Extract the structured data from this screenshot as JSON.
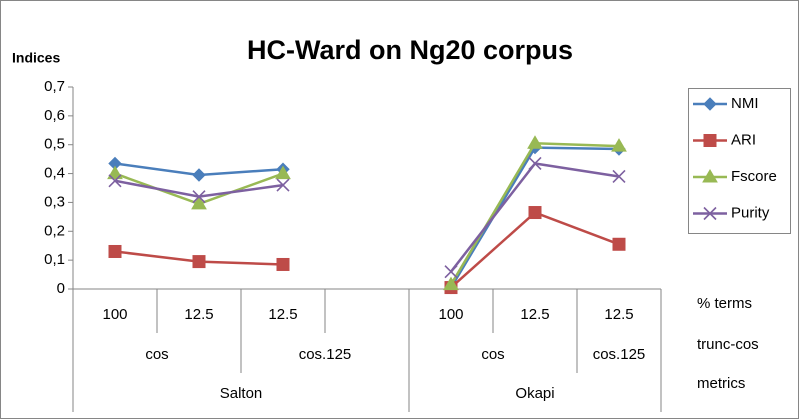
{
  "chart_data": {
    "type": "line",
    "title": "HC-Ward on Ng20 corpus",
    "y_label": "Indices",
    "categories": [
      "100",
      "12.5",
      "12.5",
      null,
      "100",
      "12.5",
      "12.5"
    ],
    "group_levels": [
      {
        "name": "% terms"
      },
      {
        "name": "trunc-cos",
        "groups": [
          {
            "label": "cos",
            "count": 2
          },
          {
            "label": "cos.125",
            "count": 2
          },
          {
            "label": "cos",
            "count": 2
          },
          {
            "label": "cos.125",
            "count": 1
          }
        ]
      },
      {
        "name": "metrics",
        "groups": [
          {
            "label": "Salton",
            "count": 4
          },
          {
            "label": "Okapi",
            "count": 3
          }
        ]
      }
    ],
    "series": [
      {
        "name": "NMI",
        "color": "#4a7ebb",
        "marker": "diamond",
        "values": [
          0.435,
          0.395,
          0.415,
          null,
          0.005,
          0.49,
          0.485
        ]
      },
      {
        "name": "ARI",
        "color": "#be4b48",
        "marker": "square",
        "values": [
          0.13,
          0.095,
          0.085,
          null,
          0.005,
          0.265,
          0.155
        ]
      },
      {
        "name": "Fscore",
        "color": "#98b954",
        "marker": "triangle",
        "values": [
          0.4,
          0.295,
          0.4,
          null,
          0.015,
          0.505,
          0.495
        ]
      },
      {
        "name": "Purity",
        "color": "#7d60a0",
        "marker": "x",
        "values": [
          0.375,
          0.32,
          0.36,
          null,
          0.06,
          0.435,
          0.39
        ]
      }
    ],
    "ylim": [
      0,
      0.7
    ],
    "yticks": [
      0,
      {
        "value": 0.1,
        "label": "0,1"
      },
      {
        "value": 0.2,
        "label": "0,2"
      },
      {
        "value": 0.3,
        "label": "0,3"
      },
      {
        "value": 0.4,
        "label": "0,4"
      },
      {
        "value": 0.5,
        "label": "0,5"
      },
      {
        "value": 0.6,
        "label": "0,6"
      },
      {
        "value": 0.7,
        "label": "0,7"
      }
    ],
    "grid": false,
    "legend": "right"
  }
}
